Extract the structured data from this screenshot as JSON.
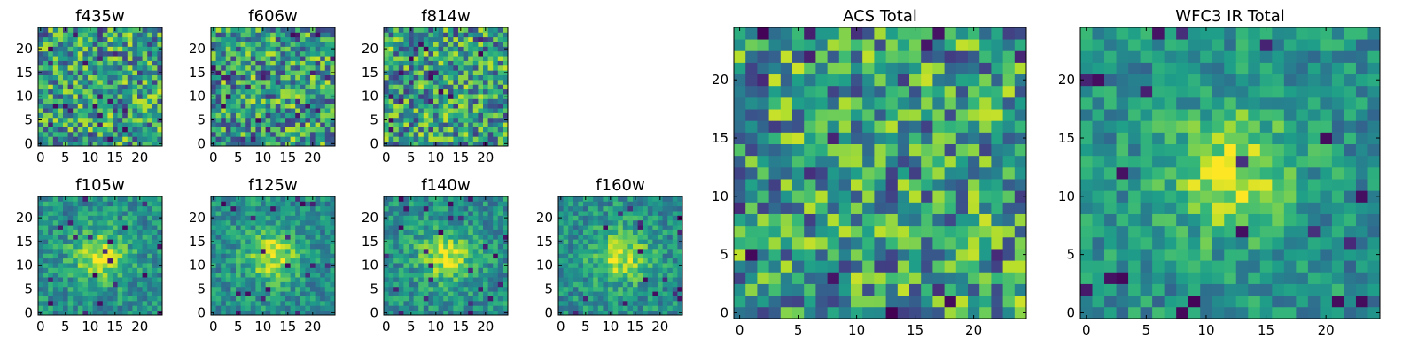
{
  "chart_data": {
    "type": "heatmap",
    "figure": "multi-band image cutouts",
    "grid_size": 25,
    "colormap": "viridis",
    "panels": [
      {
        "title": "f435w",
        "group": "small",
        "xlim": [
          -0.5,
          24.5
        ],
        "ylim": [
          -0.5,
          24.5
        ],
        "xticks": [
          0,
          5,
          10,
          15,
          20
        ],
        "yticks": [
          0,
          5,
          10,
          15,
          20
        ],
        "structure": "noise",
        "seed": 11
      },
      {
        "title": "f606w",
        "group": "small",
        "xlim": [
          -0.5,
          24.5
        ],
        "ylim": [
          -0.5,
          24.5
        ],
        "xticks": [
          0,
          5,
          10,
          15,
          20
        ],
        "yticks": [
          0,
          5,
          10,
          15,
          20
        ],
        "structure": "noise",
        "seed": 23
      },
      {
        "title": "f814w",
        "group": "small",
        "xlim": [
          -0.5,
          24.5
        ],
        "ylim": [
          -0.5,
          24.5
        ],
        "xticks": [
          0,
          5,
          10,
          15,
          20
        ],
        "yticks": [
          0,
          5,
          10,
          15,
          20
        ],
        "structure": "noise",
        "seed": 37
      },
      {
        "title": "f105w",
        "group": "small",
        "xlim": [
          -0.5,
          24.5
        ],
        "ylim": [
          -0.5,
          24.5
        ],
        "xticks": [
          0,
          5,
          10,
          15,
          20
        ],
        "yticks": [
          0,
          5,
          10,
          15,
          20
        ],
        "structure": "source",
        "source_center": [
          12,
          12
        ],
        "seed": 41
      },
      {
        "title": "f125w",
        "group": "small",
        "xlim": [
          -0.5,
          24.5
        ],
        "ylim": [
          -0.5,
          24.5
        ],
        "xticks": [
          0,
          5,
          10,
          15,
          20
        ],
        "yticks": [
          0,
          5,
          10,
          15,
          20
        ],
        "structure": "source",
        "source_center": [
          12,
          12
        ],
        "seed": 53
      },
      {
        "title": "f140w",
        "group": "small",
        "xlim": [
          -0.5,
          24.5
        ],
        "ylim": [
          -0.5,
          24.5
        ],
        "xticks": [
          0,
          5,
          10,
          15,
          20
        ],
        "yticks": [
          0,
          5,
          10,
          15,
          20
        ],
        "structure": "source",
        "source_center": [
          12,
          12
        ],
        "seed": 67
      },
      {
        "title": "f160w",
        "group": "small",
        "xlim": [
          -0.5,
          24.5
        ],
        "ylim": [
          -0.5,
          24.5
        ],
        "xticks": [
          0,
          5,
          10,
          15,
          20
        ],
        "yticks": [
          0,
          5,
          10,
          15,
          20
        ],
        "structure": "source",
        "source_center": [
          12,
          12
        ],
        "seed": 79
      },
      {
        "title": "ACS Total",
        "group": "large",
        "xlim": [
          -0.5,
          24.5
        ],
        "ylim": [
          -0.5,
          24.5
        ],
        "xticks": [
          0,
          5,
          10,
          15,
          20
        ],
        "yticks": [
          0,
          5,
          10,
          15,
          20
        ],
        "structure": "noise",
        "seed": 97
      },
      {
        "title": "WFC3 IR Total",
        "group": "large",
        "xlim": [
          -0.5,
          24.5
        ],
        "ylim": [
          -0.5,
          24.5
        ],
        "xticks": [
          0,
          5,
          10,
          15,
          20
        ],
        "yticks": [
          0,
          5,
          10,
          15,
          20
        ],
        "structure": "source",
        "source_center": [
          12,
          12
        ],
        "seed": 113
      }
    ]
  }
}
